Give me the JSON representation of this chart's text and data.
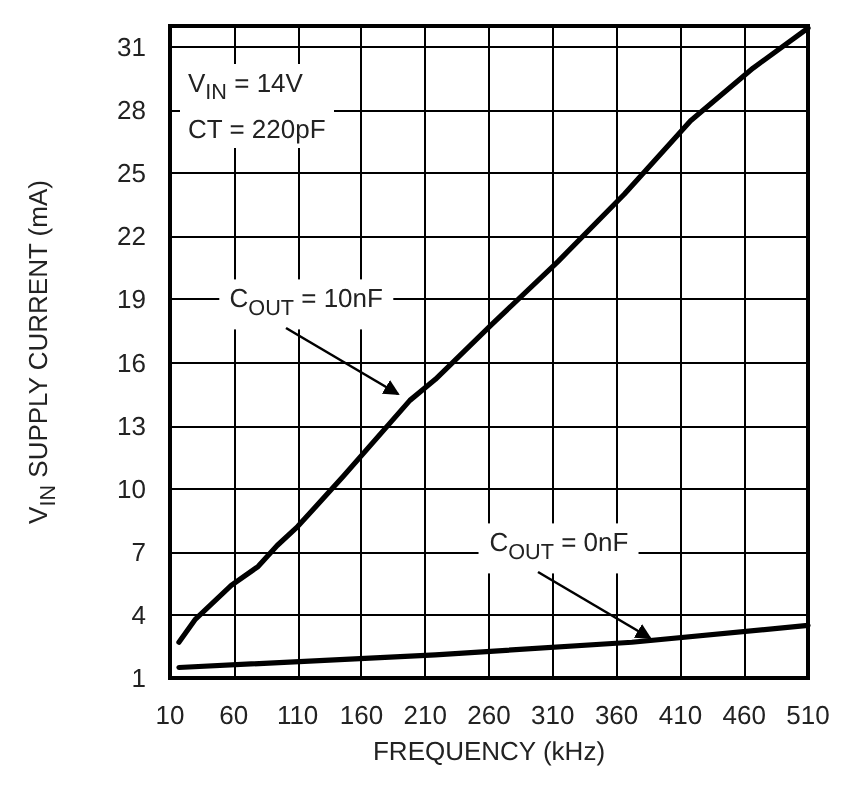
{
  "chart_data": {
    "type": "line",
    "xlabel": "FREQUENCY (kHz)",
    "ylabel": "V$_{IN}$ SUPPLY CURRENT (mA)",
    "xlim": [
      10,
      510
    ],
    "ylim": [
      1,
      32
    ],
    "xticks": [
      10,
      60,
      110,
      160,
      210,
      260,
      310,
      360,
      410,
      460,
      510
    ],
    "yticks": [
      1,
      4,
      7,
      10,
      13,
      16,
      19,
      22,
      25,
      28,
      31
    ],
    "grid": true,
    "marker": "none",
    "series": [
      {
        "color": "#000000",
        "x": [
          17,
          30,
          58,
          79,
          94,
          110,
          146,
          198,
          218,
          262,
          314,
          366,
          418,
          467,
          510
        ],
        "values": [
          2.7,
          3.8,
          5.4,
          6.3,
          7.3,
          8.2,
          10.6,
          14.2,
          15.2,
          17.8,
          20.8,
          24.0,
          27.5,
          30.0,
          31.9
        ]
      },
      {
        "color": "#000000",
        "x": [
          17,
          218,
          372,
          510
        ],
        "values": [
          1.5,
          2.1,
          2.7,
          3.5
        ]
      }
    ],
    "annotations": [
      "V$_{IN}$ = 14V",
      "CT = 220pF",
      {
        "text": "C$_{OUT}$ = 10nF",
        "x": 192,
        "y": 14.4
      },
      {
        "text": "C$_{OUT}$ = 0nF",
        "x": 390,
        "y": 2.8
      }
    ]
  }
}
